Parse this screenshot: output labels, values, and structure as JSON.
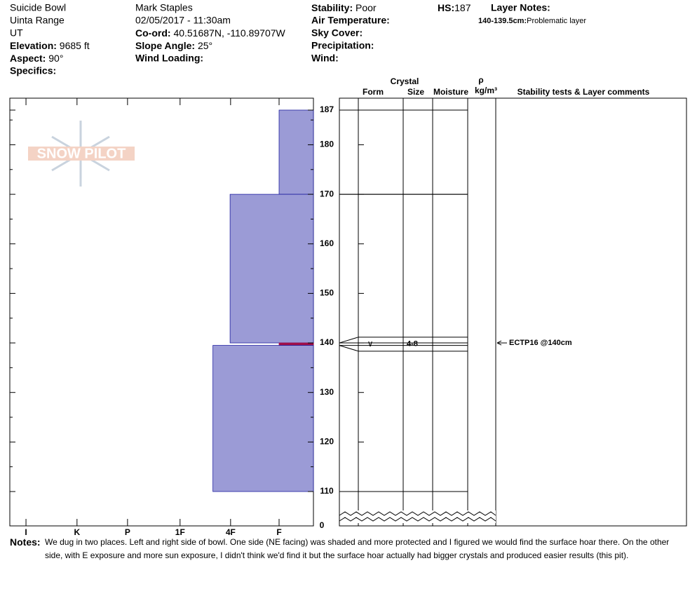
{
  "chart_data": {
    "type": "snow-profile",
    "header": {
      "location": "Suicide Bowl",
      "range": "Uinta Range",
      "state": "UT",
      "elevation": {
        "label": "Elevation:",
        "value": "9685 ft"
      },
      "aspect": {
        "label": "Aspect:",
        "value": "90°"
      },
      "specifics": {
        "label": "Specifics:"
      },
      "observer": "Mark Staples",
      "datetime": "02/05/2017 - 11:30am",
      "coord": {
        "label": "Co-ord:",
        "value": "40.51687N, -110.89707W"
      },
      "slope_angle": {
        "label": "Slope Angle:",
        "value": "25°"
      },
      "wind_loading": {
        "label": "Wind Loading:"
      },
      "stability": {
        "label": "Stability:",
        "value": "Poor"
      },
      "air_temperature": {
        "label": "Air Temperature:"
      },
      "sky_cover": {
        "label": "Sky Cover:"
      },
      "precipitation": {
        "label": "Precipitation:"
      },
      "wind": {
        "label": "Wind:"
      },
      "hs": {
        "label": "HS:",
        "value": 187
      },
      "layer_notes": {
        "label": "Layer Notes:",
        "items": [
          {
            "range": "140-139.5cm:",
            "text": "Problematic layer"
          }
        ]
      }
    },
    "logo": "SNOW PILOT",
    "columns": {
      "crystal": "Crystal",
      "form": "Form",
      "size": "Size",
      "moisture": "Moisture",
      "density_symbol": "ρ",
      "density_unit": "kg/m³",
      "comments": "Stability tests & Layer comments"
    },
    "ylim": [
      110,
      187
    ],
    "yticks": [
      110,
      120,
      130,
      140,
      150,
      160,
      170,
      180,
      187
    ],
    "yminorticks": [
      115,
      125,
      135,
      145,
      155,
      165,
      175,
      185
    ],
    "ybreak": 0,
    "xlim": [
      6.01,
      0
    ],
    "xticks": [
      {
        "value": 5.69,
        "label": "I"
      },
      {
        "value": 4.68,
        "label": "K"
      },
      {
        "value": 3.68,
        "label": "P"
      },
      {
        "value": 2.64,
        "label": "1F"
      },
      {
        "value": 1.64,
        "label": "4F"
      },
      {
        "value": 0.68,
        "label": "F"
      }
    ],
    "layers": [
      {
        "top": 187,
        "bottom": 170,
        "hardness": 0.68,
        "color": "#9b9bd6"
      },
      {
        "top": 170,
        "bottom": 140,
        "hardness": 1.65,
        "color": "#9b9bd6"
      },
      {
        "top": 140,
        "bottom": 139.5,
        "hardness": 0.68,
        "color": "#a0104a",
        "form": "∨",
        "size": "4-8"
      },
      {
        "top": 139.5,
        "bottom": 110,
        "hardness": 1.99,
        "color": "#9b9bd6"
      }
    ],
    "tests": [
      {
        "height": 140,
        "text": "ECTP16 @140cm"
      }
    ],
    "notes": {
      "label": "Notes:",
      "lines": [
        "We dug in two places. Left and right side of bowl. One side (NE facing) was shaded and more protected and I figured we would find the surface hoar there. On the other",
        "side, with E exposure and more sun exposure, I didn't think we'd find it but the surface hoar actually had bigger crystals and produced easier results (this pit)."
      ]
    }
  }
}
